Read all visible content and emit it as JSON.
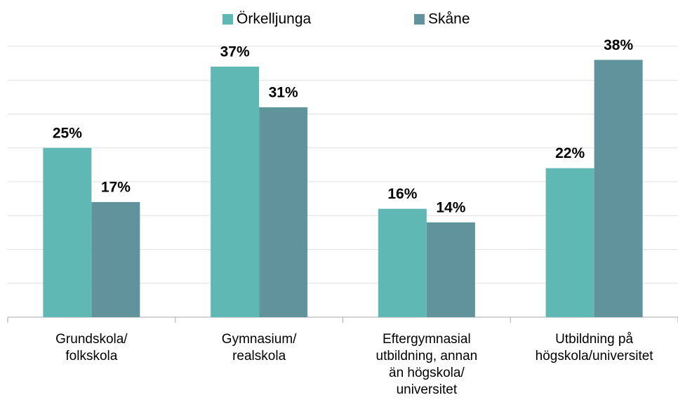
{
  "chart_data": {
    "type": "bar",
    "categories": [
      "Grundskola/\nfolkskola",
      "Gymnasium/\nrealskola",
      "Eftergymnasial\nutbildning, annan\nän högskola/\nuniversitet",
      "Utbildning på\nhögskola/universitet"
    ],
    "series": [
      {
        "name": "Örkelljunga",
        "color": "#5fb8b4",
        "values": [
          25,
          37,
          16,
          22
        ],
        "value_labels": [
          "25%",
          "37%",
          "16%",
          "22%"
        ]
      },
      {
        "name": "Skåne",
        "color": "#61939c",
        "values": [
          17,
          31,
          14,
          38
        ],
        "value_labels": [
          "17%",
          "31%",
          "14%",
          "38%"
        ]
      }
    ],
    "ylim": [
      0,
      40
    ],
    "yticks": [
      0,
      5,
      10,
      15,
      20,
      25,
      30,
      35,
      40
    ],
    "grid": true,
    "legend": "top"
  }
}
